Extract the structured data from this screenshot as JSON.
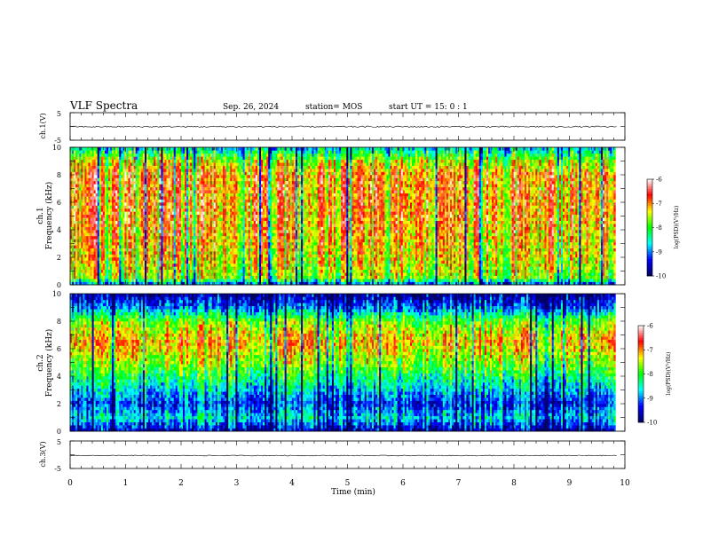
{
  "header": {
    "title": "VLF Spectra",
    "date": "Sep. 26, 2024",
    "station": "station= MOS",
    "start_ut": "start  UT =   15: 0  : 1"
  },
  "chart_data": [
    {
      "type": "line",
      "name": "ch1-waveform",
      "ylabel": "ch.1(V)",
      "xlim": [
        0,
        10
      ],
      "ylim": [
        -5,
        5
      ],
      "yticks": [
        "5",
        "-5"
      ],
      "level": -0.1,
      "noise": 0.25
    },
    {
      "type": "heatmap",
      "name": "ch1-spectrogram",
      "ylabel_top": "ch.1",
      "ylabel": "Frequency (kHz)",
      "xlim": [
        0,
        10
      ],
      "ylim": [
        0,
        10
      ],
      "yticks": [
        "0",
        "2",
        "4",
        "6",
        "8",
        "10"
      ],
      "data_end_min": 9.83,
      "colorbar": {
        "label": "log(PSD)(V²/Hz)",
        "range": [
          -10,
          -6
        ],
        "ticks": [
          "-6",
          "-7",
          "-8",
          "-9",
          "-10"
        ]
      },
      "mean_psd_profile": [
        {
          "f": 0.0,
          "v": -9.2
        },
        {
          "f": 0.5,
          "v": -7.6
        },
        {
          "f": 2.0,
          "v": -7.2
        },
        {
          "f": 5.0,
          "v": -6.9
        },
        {
          "f": 8.0,
          "v": -6.9
        },
        {
          "f": 9.0,
          "v": -7.4
        },
        {
          "f": 10.0,
          "v": -8.6
        }
      ]
    },
    {
      "type": "heatmap",
      "name": "ch2-spectrogram",
      "ylabel_top": "ch.2",
      "ylabel": "Frequency (kHz)",
      "xlim": [
        0,
        10
      ],
      "ylim": [
        0,
        10
      ],
      "yticks": [
        "0",
        "2",
        "4",
        "6",
        "8",
        "10"
      ],
      "data_end_min": 9.83,
      "colorbar": {
        "label": "log(PSD)(V²/Hz)",
        "range": [
          -10,
          -6
        ],
        "ticks": [
          "-6",
          "-7",
          "-8",
          "-9",
          "-10"
        ]
      },
      "mean_psd_profile": [
        {
          "f": 0.0,
          "v": -9.6
        },
        {
          "f": 1.0,
          "v": -8.6
        },
        {
          "f": 2.0,
          "v": -9.2
        },
        {
          "f": 3.5,
          "v": -8.4
        },
        {
          "f": 5.0,
          "v": -7.6
        },
        {
          "f": 6.5,
          "v": -7.0
        },
        {
          "f": 8.0,
          "v": -7.7
        },
        {
          "f": 9.0,
          "v": -9.0
        },
        {
          "f": 10.0,
          "v": -9.7
        }
      ]
    },
    {
      "type": "line",
      "name": "ch3-waveform",
      "ylabel": "ch.3(V)",
      "xlim": [
        0,
        10
      ],
      "ylim": [
        -5,
        5
      ],
      "yticks": [
        "5",
        "-5"
      ],
      "level": -0.3,
      "noise": 0.15,
      "xlabel": "Time  (min)",
      "xticks": [
        "0",
        "1",
        "2",
        "3",
        "4",
        "5",
        "6",
        "7",
        "8",
        "9",
        "10"
      ]
    }
  ],
  "colors": {
    "colormap": [
      "#000060",
      "#0000ff",
      "#00ffff",
      "#00ff00",
      "#ffff00",
      "#ff0000",
      "#ffffff"
    ],
    "axes": "#000000"
  }
}
